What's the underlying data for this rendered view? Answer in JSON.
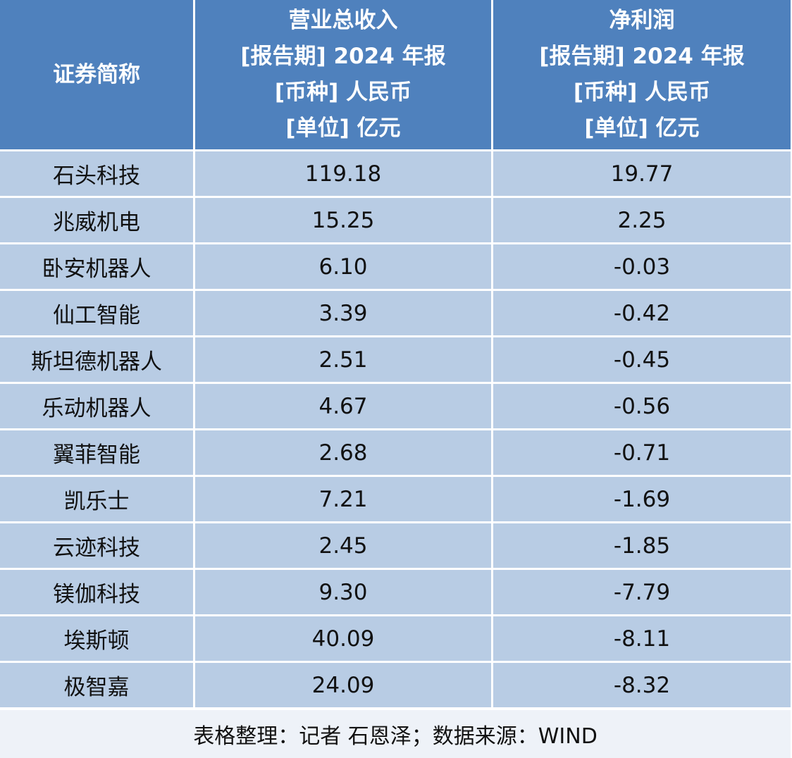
{
  "table": {
    "header": [
      [
        "证券简称"
      ],
      [
        "营业总收入",
        "[报告期] 2024 年报",
        "[币种] 人民币",
        "[单位] 亿元"
      ],
      [
        "净利润",
        "[报告期] 2024 年报",
        "[币种] 人民币",
        "[单位] 亿元"
      ]
    ],
    "rows": [
      [
        "石头科技",
        "119.18",
        "19.77"
      ],
      [
        "兆威机电",
        "15.25",
        "2.25"
      ],
      [
        "卧安机器人",
        "6.10",
        "-0.03"
      ],
      [
        "仙工智能",
        "3.39",
        "-0.42"
      ],
      [
        "斯坦德机器人",
        "2.51",
        "-0.45"
      ],
      [
        "乐动机器人",
        "4.67",
        "-0.56"
      ],
      [
        "翼菲智能",
        "2.68",
        "-0.71"
      ],
      [
        "凯乐士",
        "7.21",
        "-1.69"
      ],
      [
        "云迹科技",
        "2.45",
        "-1.85"
      ],
      [
        "镁伽科技",
        "9.30",
        "-7.79"
      ],
      [
        "埃斯顿",
        "40.09",
        "-8.11"
      ],
      [
        "极智嘉",
        "24.09",
        "-8.32"
      ]
    ],
    "footer": "表格整理：记者 石恩泽；数据来源：WIND"
  }
}
